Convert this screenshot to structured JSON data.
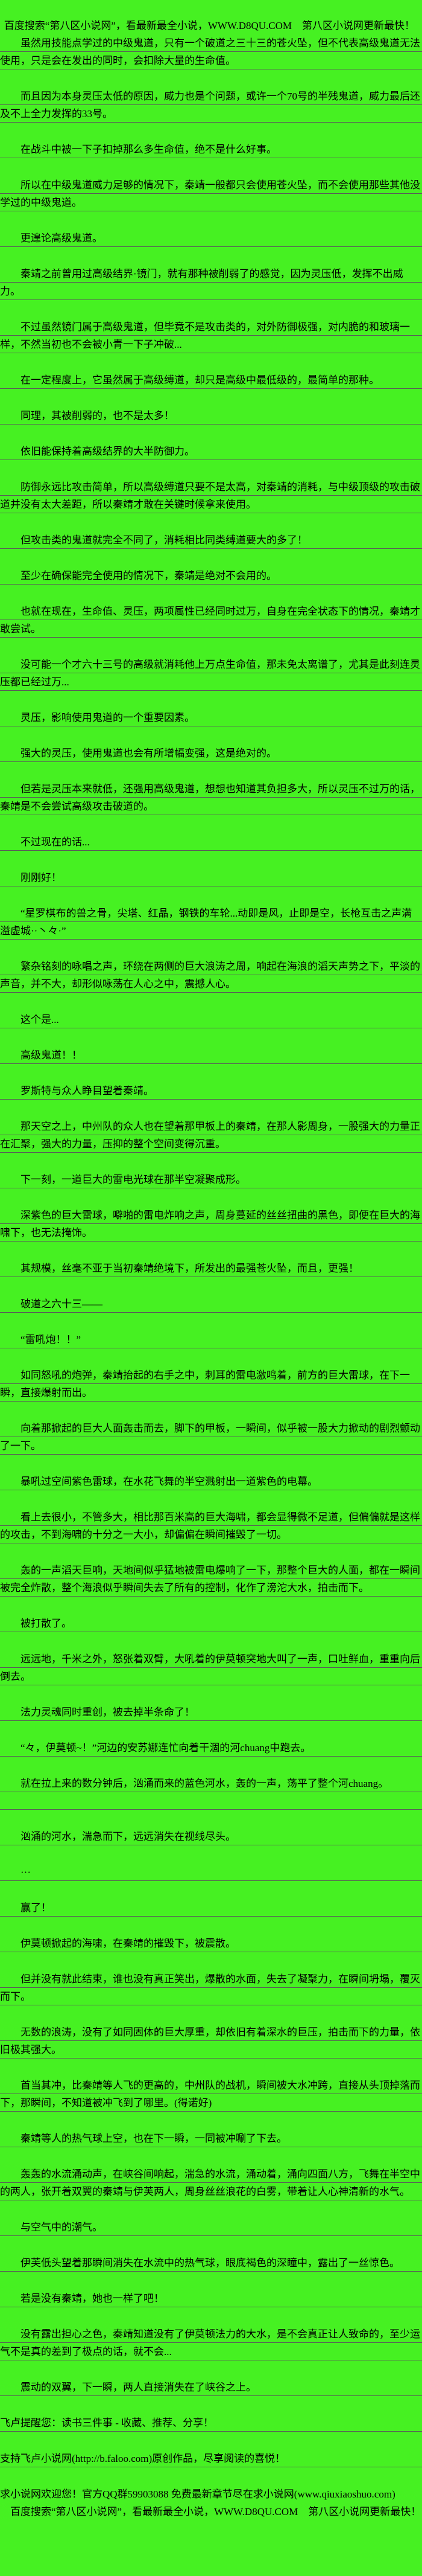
{
  "page": {
    "background_color": "#46f122",
    "text_color": "#000000",
    "rule_color": "#5a5a5a"
  },
  "paragraphs": [
    {
      "name": "promo-line-top",
      "text": "百度搜索“第八区小说网”，看最新最全小说，WWW.D8QU.COM　第八区小说网更新最快！",
      "indent": 0.4,
      "ruled": false,
      "tight": true
    },
    {
      "text": "虽然用技能点学过的中级鬼道，只有一个破道之三十三的苍火坠，但不代表高级鬼道无法使用，只是会在发出的同时，会扣除大量的生命值。"
    },
    {
      "text": "而且因为本身灵压太低的原因，威力也是个问题，或许一个70号的半残鬼道，威力最后还及不上全力发挥的33号。"
    },
    {
      "text": "在战斗中被一下子扣掉那么多生命值，绝不是什么好事。"
    },
    {
      "text": "所以在中级鬼道威力足够的情况下，秦靖一般都只会使用苍火坠，而不会使用那些其他没学过的中级鬼道。"
    },
    {
      "text": "更遑论高级鬼道。"
    },
    {
      "text": "秦靖之前曾用过高级结界·镜门，就有那种被削弱了的感觉，因为灵压低，发挥不出威力。"
    },
    {
      "text": "不过虽然镜门属于高级鬼道，但毕竟不是攻击类的，对外防御极强，对内脆的和玻璃一样，不然当初也不会被小青一下子冲破..."
    },
    {
      "text": "在一定程度上，它虽然属于高级缚道，却只是高级中最低级的，最简单的那种。"
    },
    {
      "text": "同理，其被削弱的，也不是太多！"
    },
    {
      "text": "依旧能保持着高级结界的大半防御力。"
    },
    {
      "text": "防御永远比攻击简单，所以高级缚道只要不是太高，对秦靖的消耗，与中级顶级的攻击破道并没有太大差距，所以秦靖才敢在关键时候拿来使用。"
    },
    {
      "text": "但攻击类的鬼道就完全不同了，消耗相比同类缚道要大的多了！"
    },
    {
      "text": "至少在确保能完全使用的情况下，秦靖是绝对不会用的。"
    },
    {
      "text": "也就在现在，生命值、灵压，两项属性已经同时过万，自身在完全状态下的情况，秦靖才敢尝试。"
    },
    {
      "text": "没可能一个才六十三号的高级就消耗他上万点生命值，那未免太离谱了，尤其是此刻连灵压都已经过万..."
    },
    {
      "text": "灵压，影响使用鬼道的一个重要因素。"
    },
    {
      "text": "强大的灵压，使用鬼道也会有所增幅变强，这是绝对的。"
    },
    {
      "text": "但若是灵压本来就低，还强用高级鬼道，想想也知道其负担多大，所以灵压不过万的话，秦靖是不会尝试高级攻击破道的。"
    },
    {
      "text": "不过现在的话..."
    },
    {
      "text": "刚刚好！"
    },
    {
      "text": "“星罗棋布的兽之骨，尖塔、红晶，钢铁的车轮...动即是风，止即是空，长枪互击之声满溢虚城··丶々·”"
    },
    {
      "text": "繁杂铭刻的咏唱之声，环绕在两侧的巨大浪涛之周，响起在海浪的滔天声势之下，平淡的声音，并不大，却形似咏荡在人心之中，震撼人心。"
    },
    {
      "text": "这个是..."
    },
    {
      "text": "高级鬼道！！"
    },
    {
      "text": "罗斯特与众人睁目望着秦靖。"
    },
    {
      "text": "那天空之上，中州队的众人也在望着那甲板上的秦靖，在那人影周身，一股强大的力量正在汇聚，强大的力量，压抑的整个空间变得沉重。"
    },
    {
      "text": "下一刻，一道巨大的雷电光球在那半空凝聚成形。"
    },
    {
      "text": "深紫色的巨大雷球，噼啪的雷电炸响之声，周身蔓延的丝丝扭曲的黑色，即便在巨大的海啸下，也无法掩饰。"
    },
    {
      "text": "其规模，丝毫不亚于当初秦靖绝境下，所发出的最强苍火坠，而且，更强！"
    },
    {
      "text": "破道之六十三——"
    },
    {
      "text": "“雷吼炮！！”"
    },
    {
      "text": "如同怒吼的炮弹，秦靖抬起的右手之中，刺耳的雷电激鸣着，前方的巨大雷球，在下一瞬，直接爆射而出。"
    },
    {
      "text": "向着那掀起的巨大人面轰击而去，脚下的甲板，一瞬间，似乎被一股大力掀动的剧烈颤动了一下。"
    },
    {
      "text": "暴吼过空间紫色雷球，在水花飞舞的半空溅射出一道紫色的电幕。"
    },
    {
      "text": "看上去很小，不管多大，相比那百米高的巨大海啸，都会显得微不足道，但偏偏就是这样的攻击，不到海啸的十分之一大小，却偏偏在瞬间摧毁了一切。"
    },
    {
      "text": "轰的一声滔天巨响，天地间似乎猛地被雷电爆响了一下，那整个巨大的人面，都在一瞬间被完全炸散，整个海浪似乎瞬间失去了所有的控制，化作了滂沱大水，拍击而下。"
    },
    {
      "text": "被打散了。"
    },
    {
      "text": "远远地，千米之外，怒张着双臂，大吼着的伊莫顿突地大叫了一声，口吐鲜血，重重向后倒去。"
    },
    {
      "text": "法力灵魂同时重创，被去掉半条命了！"
    },
    {
      "text": "“々，伊莫顿~！”河边的安苏娜连忙向着干涸的河chuang中跑去。"
    },
    {
      "text": "就在拉上来的数分钟后，汹涌而来的蓝色河水，轰的一声，荡平了整个河chuang。",
      "extra": true
    },
    {
      "text": "汹涌的河水，湍急而下，远远消失在视线尽头。"
    },
    {
      "text": "···"
    },
    {
      "text": "赢了！"
    },
    {
      "text": "伊莫顿掀起的海啸，在秦靖的摧毁下，被震散。"
    },
    {
      "text": "但并没有就此结束，谁也没有真正笑出，爆散的水面，失去了凝聚力，在瞬间坍塌，覆灭而下。"
    },
    {
      "text": "无数的浪涛，没有了如同固体的巨大厚重，却依旧有着深水的巨压，拍击而下的力量，依旧极其强大。"
    },
    {
      "text": "首当其冲，比秦靖等人飞的更高的，中州队的战机，瞬间被大水冲跨，直接从头顶掉落而下，那瞬间，不知道被冲飞到了哪里。(得诺好)"
    },
    {
      "text": "秦靖等人的热气球上空，也在下一瞬，一同被冲唰了下去。"
    },
    {
      "text": "轰轰的水流涌动声，在峡谷间响起，湍急的水流，涌动着，涌向四面八方，飞舞在半空中的两人，张开着双翼的秦靖与伊芙两人，周身丝丝浪花的白雾，带着让人心神清新的水气。"
    },
    {
      "text": "与空气中的潮气。"
    },
    {
      "text": "伊芙低头望着那瞬间消失在水流中的热气球，眼底褐色的深瞳中，露出了一丝惊色。"
    },
    {
      "text": "若是没有秦靖，她也一样了吧！"
    },
    {
      "text": "没有露出担心之色，秦靖知道没有了伊莫顿法力的大水，是不会真正让人致命的，至少运气不是真的差到了极点的话，就不会..."
    },
    {
      "text": "震动的双翼，下一瞬，两人直接消失在了峡谷之上。"
    },
    {
      "name": "faloo-reminder-line",
      "text": "飞卢提醒您：读书三件事 - 收藏、推荐、分享！",
      "indent": 0
    },
    {
      "name": "faloo-support-line",
      "text": "支持飞卢小说网(http://b.faloo.com)原创作品，尽享阅读的喜悦！",
      "indent": 0
    },
    {
      "name": "qiuxiaoshuo-promo-line",
      "text": "求小说网欢迎您！官方QQ群59903088 免费最新章节尽在求小说网(www.qiuxiaoshuo.com)",
      "indent": 0,
      "ruled": false,
      "tight": true
    },
    {
      "name": "promo-line-bottom",
      "text": "百度搜索“第八区小说网”，看最新最全小说，WWW.D8QU.COM　第八区小说网更新最快！",
      "indent": 1,
      "ruled": false,
      "tight": true
    }
  ]
}
